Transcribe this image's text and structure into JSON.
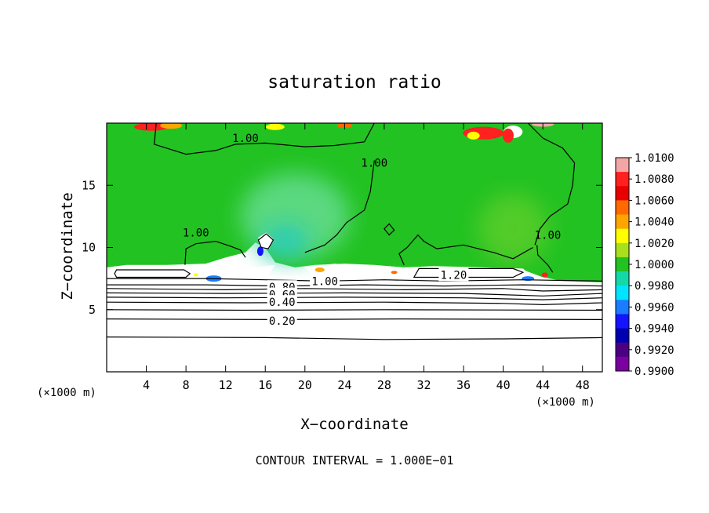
{
  "chart_data": {
    "type": "heatmap",
    "title": "saturation ratio",
    "xlabel": "X−coordinate",
    "ylabel": "Z−coordinate",
    "x_unit_label": "(×1000 m)",
    "y_unit_label": "(×1000 m)",
    "xlim": [
      0,
      50
    ],
    "ylim": [
      0,
      20
    ],
    "x_ticks": [
      "4",
      "8",
      "12",
      "16",
      "20",
      "24",
      "28",
      "32",
      "36",
      "40",
      "44",
      "48"
    ],
    "x_tick_values": [
      4,
      8,
      12,
      16,
      20,
      24,
      28,
      32,
      36,
      40,
      44,
      48
    ],
    "y_ticks": [
      "5",
      "10",
      "15"
    ],
    "y_tick_values": [
      5,
      10,
      15
    ],
    "footer": "CONTOUR INTERVAL = 1.000E−01",
    "contour_interval": 0.1,
    "contour_labels": [
      {
        "text": "1.00",
        "x": 14,
        "z": 18.8
      },
      {
        "text": "1.00",
        "x": 27,
        "z": 16.8
      },
      {
        "text": "1.00",
        "x": 9,
        "z": 11.2
      },
      {
        "text": "1.00",
        "x": 44.5,
        "z": 11
      },
      {
        "text": "1.00",
        "x": 22,
        "z": 7.3
      },
      {
        "text": "1.20",
        "x": 35,
        "z": 7.8
      },
      {
        "text": "0.80",
        "x": 17.7,
        "z": 6.8
      },
      {
        "text": "0.60",
        "x": 17.7,
        "z": 6.2
      },
      {
        "text": "0.40",
        "x": 17.7,
        "z": 5.6
      },
      {
        "text": "0.20",
        "x": 17.7,
        "z": 4.1
      }
    ],
    "colorbar": {
      "labels": [
        "1.0100",
        "1.0080",
        "1.0060",
        "1.0040",
        "1.0020",
        "1.0000",
        "0.9980",
        "0.9960",
        "0.9940",
        "0.9920",
        "0.9900"
      ],
      "colors": [
        "#f4a6a6",
        "#ff2020",
        "#e80000",
        "#ff6a00",
        "#ffa500",
        "#ffff00",
        "#a8e020",
        "#22c222",
        "#13d9a8",
        "#00e5ff",
        "#1a7cff",
        "#1414ff",
        "#0000b0",
        "#4b0082",
        "#7b00a0"
      ]
    },
    "field_colors": {
      "saturated": "#22c222",
      "slightly_subsaturated": "#6fe0a0",
      "subsaturated_core": "#19c8cc",
      "supersaturated": "#ff2020",
      "low_layer": "#ffffff"
    }
  }
}
